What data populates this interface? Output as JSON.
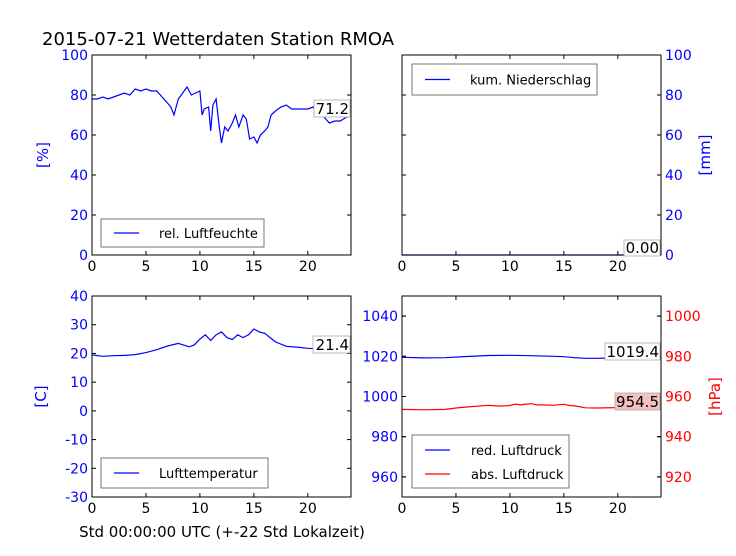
{
  "title": "2015-07-21 Wetterdaten Station RMOA",
  "xlabel": "Std 00:00:00 UTC (+-22 Std Lokalzeit)",
  "colors": {
    "blue": "#0000ff",
    "red": "#ff0000",
    "axis": "#000000"
  },
  "chart_data": [
    {
      "type": "line",
      "panel": "humidity",
      "ylabel": "[%]",
      "ylim": [
        0,
        100
      ],
      "yticks": [
        0,
        20,
        40,
        60,
        80,
        100
      ],
      "xlim": [
        0,
        24
      ],
      "xticks": [
        0,
        5,
        10,
        15,
        20
      ],
      "legend": "lower-left",
      "annotation": "71.2",
      "series": [
        {
          "name": "rel. Luftfeuchte",
          "color": "#0000ff",
          "x": [
            0,
            0.5,
            1,
            1.5,
            2,
            2.5,
            3,
            3.5,
            4,
            4.5,
            5,
            5.5,
            6,
            6.5,
            7,
            7.3,
            7.6,
            8,
            8.4,
            8.8,
            9.2,
            9.6,
            10,
            10.2,
            10.4,
            10.8,
            11,
            11.2,
            11.5,
            11.8,
            12,
            12.3,
            12.6,
            13,
            13.3,
            13.6,
            14,
            14.3,
            14.6,
            15,
            15.3,
            15.6,
            16,
            16.3,
            16.6,
            17,
            17.5,
            18,
            18.5,
            19,
            19.5,
            20,
            20.5,
            21,
            21.5,
            22,
            22.5,
            23,
            23.6
          ],
          "y": [
            78,
            78,
            79,
            78,
            79,
            80,
            81,
            80,
            83,
            82,
            83,
            82,
            82,
            79,
            76,
            74,
            70,
            78,
            81,
            84,
            80,
            81,
            82,
            70,
            73,
            74,
            62,
            75,
            78,
            64,
            56,
            64,
            62,
            66,
            70,
            64,
            70,
            68,
            58,
            59,
            56,
            60,
            62,
            64,
            70,
            72,
            74,
            75,
            73,
            73,
            73,
            73,
            74,
            70,
            69,
            66,
            67,
            67,
            69
          ]
        }
      ]
    },
    {
      "type": "line",
      "panel": "precipitation",
      "ylabel": "[mm]",
      "ylim": [
        0,
        100
      ],
      "yticks": [
        0,
        20,
        40,
        60,
        80,
        100
      ],
      "xlim": [
        0,
        24
      ],
      "xticks": [
        0,
        5,
        10,
        15,
        20
      ],
      "legend": "upper-left",
      "annotation": "0.00",
      "series": [
        {
          "name": "kum. Niederschlag",
          "color": "#0000ff",
          "x": [
            0,
            24
          ],
          "y": [
            0,
            0
          ]
        }
      ]
    },
    {
      "type": "line",
      "panel": "temperature",
      "ylabel": "[C]",
      "ylim": [
        -30,
        40
      ],
      "yticks": [
        -30,
        -20,
        -10,
        0,
        10,
        20,
        30,
        40
      ],
      "xlim": [
        0,
        24
      ],
      "xticks": [
        0,
        5,
        10,
        15,
        20
      ],
      "legend": "lower-left",
      "annotation": "21.4",
      "series": [
        {
          "name": "Lufttemperatur",
          "color": "#0000ff",
          "x": [
            0,
            1,
            2,
            3,
            4,
            5,
            6,
            7,
            8,
            9,
            9.5,
            10,
            10.5,
            11,
            11.5,
            12,
            12.5,
            13,
            13.5,
            14,
            14.5,
            15,
            15.5,
            16,
            16.5,
            17,
            18,
            19,
            20,
            21,
            22,
            23,
            24
          ],
          "y": [
            19.5,
            19,
            19.2,
            19.3,
            19.6,
            20.3,
            21.3,
            22.6,
            23.5,
            22.3,
            23,
            25,
            26.5,
            24.5,
            26.5,
            27.5,
            25.5,
            24.8,
            26.5,
            25.5,
            26.5,
            28.5,
            27.5,
            27,
            25.5,
            24,
            22.5,
            22.2,
            21.8,
            21.6,
            21.5,
            21.4,
            21.4
          ]
        }
      ]
    },
    {
      "type": "line",
      "panel": "pressure",
      "ylabel_right": "[hPa]",
      "ylim": [
        950,
        1050
      ],
      "yticks": [
        960,
        980,
        1000,
        1020,
        1040
      ],
      "ylim_right": [
        910,
        1010
      ],
      "yticks_right": [
        920,
        940,
        960,
        980,
        1000
      ],
      "xlim": [
        0,
        24
      ],
      "xticks": [
        0,
        5,
        10,
        15,
        20
      ],
      "legend": "lower-left",
      "annotations": [
        "1019.4",
        "954.5"
      ],
      "series": [
        {
          "name": "red. Luftdruck",
          "color": "#0000ff",
          "axis": "left",
          "x": [
            0,
            2,
            4,
            6,
            8,
            10,
            12,
            14,
            15,
            16,
            17,
            18,
            19,
            20,
            22,
            24
          ],
          "y": [
            1019.5,
            1019.2,
            1019.3,
            1019.9,
            1020.4,
            1020.5,
            1020.3,
            1020,
            1019.8,
            1019.3,
            1019,
            1019,
            1019.1,
            1019.3,
            1019.4,
            1019.4
          ]
        },
        {
          "name": "abs. Luftdruck",
          "color": "#ff0000",
          "axis": "right",
          "x": [
            0,
            2,
            4,
            5,
            6,
            8,
            9,
            10,
            10.5,
            11,
            11.5,
            12,
            12.5,
            13,
            14,
            15,
            15.5,
            16,
            17,
            18,
            20,
            22,
            24
          ],
          "y": [
            953.6,
            953.4,
            953.6,
            954.3,
            954.8,
            955.6,
            955.2,
            955.5,
            956.2,
            955.8,
            956.2,
            956.4,
            955.8,
            955.8,
            955.6,
            956.1,
            955.5,
            955.3,
            954.4,
            954.3,
            954.5,
            954.6,
            954.5
          ]
        }
      ]
    }
  ]
}
